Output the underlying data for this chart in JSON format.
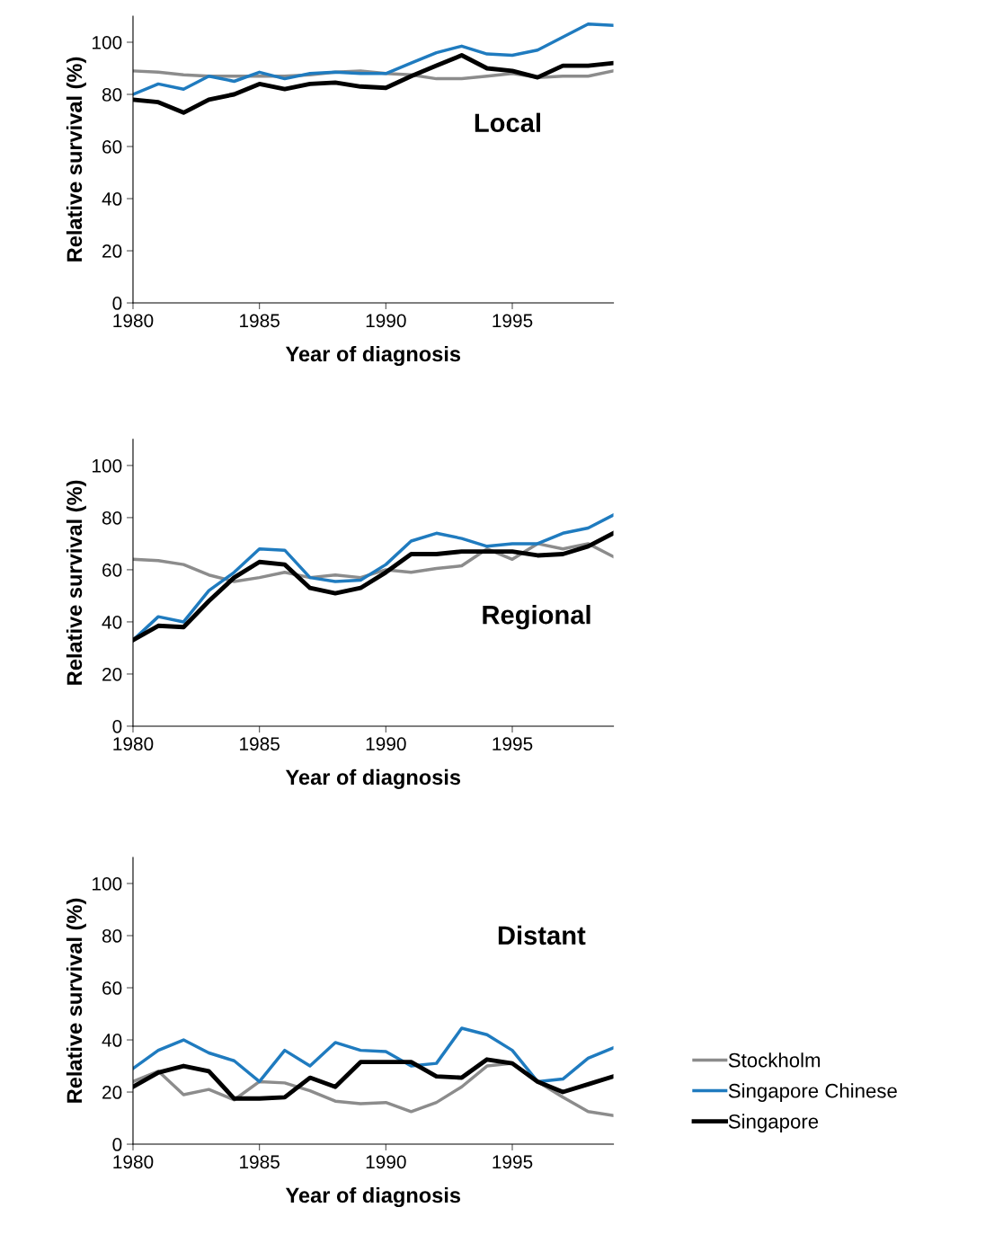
{
  "chart_data": [
    {
      "type": "line",
      "xlabel": "Year of diagnosis",
      "ylabel": "Relative survival (%)",
      "annotations": [
        "Local"
      ],
      "x": [
        1980,
        1981,
        1982,
        1983,
        1984,
        1985,
        1986,
        1987,
        1988,
        1989,
        1990,
        1991,
        1992,
        1993,
        1994,
        1995,
        1996,
        1997,
        1998,
        1999
      ],
      "xlim": [
        1980,
        1999
      ],
      "xticks": [
        1980,
        1985,
        1990,
        1995
      ],
      "ylim": [
        0,
        110
      ],
      "yticks": [
        0,
        20,
        40,
        60,
        80,
        100
      ],
      "grid": false,
      "legend": false,
      "marker": "none",
      "line_style": "solid",
      "series": [
        {
          "color": "#8c8c8c",
          "values": [
            89,
            88.5,
            87.5,
            87,
            87,
            87,
            87,
            87.5,
            88.5,
            89,
            88,
            87.5,
            86,
            86,
            87,
            88,
            86.5,
            87,
            87,
            89
          ]
        },
        {
          "color": "#1f7bbf",
          "values": [
            80,
            84,
            82,
            87,
            85,
            88.5,
            86,
            88,
            88.5,
            88,
            88,
            92,
            96,
            98.5,
            95.5,
            95,
            97,
            102,
            107,
            106.5
          ]
        },
        {
          "color": "#000000",
          "values": [
            78,
            77,
            73,
            78,
            80,
            84,
            82,
            84,
            84.5,
            83,
            82.5,
            87,
            91,
            95,
            90,
            89,
            86.5,
            91,
            91,
            92
          ]
        }
      ]
    },
    {
      "type": "line",
      "xlabel": "Year of diagnosis",
      "ylabel": "Relative survival (%)",
      "annotations": [
        "Regional"
      ],
      "x": [
        1980,
        1981,
        1982,
        1983,
        1984,
        1985,
        1986,
        1987,
        1988,
        1989,
        1990,
        1991,
        1992,
        1993,
        1994,
        1995,
        1996,
        1997,
        1998,
        1999
      ],
      "xlim": [
        1980,
        1999
      ],
      "xticks": [
        1980,
        1985,
        1990,
        1995
      ],
      "ylim": [
        0,
        110
      ],
      "yticks": [
        0,
        20,
        40,
        60,
        80,
        100
      ],
      "grid": false,
      "legend": false,
      "marker": "none",
      "line_style": "solid",
      "series": [
        {
          "color": "#8c8c8c",
          "values": [
            64,
            63.5,
            62,
            58,
            55.5,
            57,
            59,
            57,
            58,
            57,
            60,
            59,
            60.5,
            61.5,
            68,
            64,
            70,
            68,
            70,
            65
          ]
        },
        {
          "color": "#1f7bbf",
          "values": [
            33,
            42,
            40,
            52,
            59,
            68,
            67.5,
            57,
            55.5,
            56,
            62,
            71,
            74,
            72,
            69,
            70,
            70,
            74,
            76,
            81
          ]
        },
        {
          "color": "#000000",
          "values": [
            33,
            38.5,
            38,
            48,
            57,
            63,
            62,
            53,
            51,
            53,
            59,
            66,
            66,
            67,
            67,
            67,
            65.5,
            66,
            69,
            74
          ]
        }
      ]
    },
    {
      "type": "line",
      "xlabel": "Year of diagnosis",
      "ylabel": "Relative survival (%)",
      "annotations": [
        "Distant"
      ],
      "x": [
        1980,
        1981,
        1982,
        1983,
        1984,
        1985,
        1986,
        1987,
        1988,
        1989,
        1990,
        1991,
        1992,
        1993,
        1994,
        1995,
        1996,
        1997,
        1998,
        1999
      ],
      "xlim": [
        1980,
        1999
      ],
      "xticks": [
        1980,
        1985,
        1990,
        1995
      ],
      "ylim": [
        0,
        110
      ],
      "yticks": [
        0,
        20,
        40,
        60,
        80,
        100
      ],
      "grid": false,
      "legend": "right",
      "marker": "none",
      "line_style": "solid",
      "series": [
        {
          "name": "Stockholm",
          "color": "#8c8c8c",
          "values": [
            24,
            28,
            19,
            21,
            17,
            24,
            23.5,
            20.5,
            16.5,
            15.5,
            16,
            12.5,
            16,
            22,
            30,
            31,
            24,
            18,
            12.5,
            11
          ]
        },
        {
          "name": "Singapore Chinese",
          "color": "#1f7bbf",
          "values": [
            29,
            36,
            40,
            35,
            32,
            24,
            36,
            30,
            39,
            36,
            35.5,
            30,
            31,
            44.5,
            42,
            36,
            24,
            25,
            33,
            37
          ]
        },
        {
          "name": "Singapore",
          "color": "#000000",
          "values": [
            22,
            27.5,
            30,
            28,
            17.5,
            17.5,
            18,
            25.5,
            22,
            31.5,
            31.5,
            31.5,
            26,
            25.5,
            32.5,
            31,
            24,
            20,
            23,
            26
          ]
        }
      ]
    }
  ]
}
